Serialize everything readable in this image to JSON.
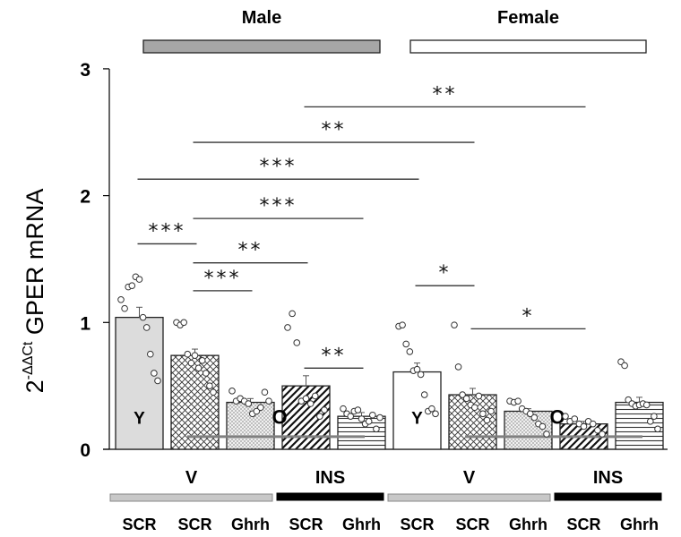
{
  "chart_data": {
    "type": "bar",
    "title": "",
    "ylabel_base": "2",
    "ylabel_sup": "-ΔΔCt",
    "ylabel_main": "GPER mRNA",
    "xlabel": "",
    "ylim": [
      0,
      3
    ],
    "yticks": [
      {
        "value": 0,
        "label": "0"
      },
      {
        "value": 1,
        "label": "1"
      },
      {
        "value": 2,
        "label": "2"
      },
      {
        "value": 3,
        "label": "3"
      }
    ],
    "grid": false,
    "sex_groups": [
      {
        "label": "Male",
        "bar_color": "#a6a6a6",
        "first_bar": 0,
        "last_bar": 4
      },
      {
        "label": "Female",
        "bar_color": "#ffffff",
        "first_bar": 5,
        "last_bar": 9
      }
    ],
    "treatment_groups": [
      {
        "label": "V",
        "bar_color": "#c8c8c8",
        "first_bar": 0,
        "last_bar": 2
      },
      {
        "label": "INS",
        "bar_color": "#000000",
        "first_bar": 3,
        "last_bar": 4
      },
      {
        "label": "V",
        "bar_color": "#c8c8c8",
        "first_bar": 5,
        "last_bar": 7
      },
      {
        "label": "INS",
        "bar_color": "#000000",
        "first_bar": 8,
        "last_bar": 9
      }
    ],
    "categories": [
      "SCR",
      "SCR",
      "Ghrh",
      "SCR",
      "Ghrh",
      "SCR",
      "SCR",
      "Ghrh",
      "SCR",
      "Ghrh"
    ],
    "bars": [
      {
        "sex": "Male",
        "treatment": "V",
        "shRNA": "SCR",
        "age_label": "Y",
        "pattern": "solid-lightgray",
        "value": 1.04,
        "error": 0.08,
        "points": [
          1.18,
          1.11,
          1.28,
          1.29,
          1.36,
          1.34,
          1.04,
          0.96,
          0.75,
          0.6,
          0.54
        ]
      },
      {
        "sex": "Male",
        "treatment": "V",
        "shRNA": "SCR",
        "age_label": "",
        "pattern": "crosshatch",
        "value": 0.74,
        "error": 0.05,
        "points": [
          1.0,
          0.98,
          1.0,
          0.75,
          0.68,
          0.74,
          0.64,
          0.7,
          0.6,
          0.5,
          0.45
        ]
      },
      {
        "sex": "Male",
        "treatment": "V",
        "shRNA": "Ghrh",
        "age_label": "",
        "pattern": "dots",
        "value": 0.37,
        "error": 0.03,
        "points": [
          0.46,
          0.38,
          0.4,
          0.38,
          0.36,
          0.28,
          0.3,
          0.33,
          0.45,
          0.38
        ]
      },
      {
        "sex": "Male",
        "treatment": "INS",
        "shRNA": "SCR",
        "age_label": "O",
        "pattern": "diagonal",
        "value": 0.5,
        "error": 0.08,
        "points": [
          0.96,
          1.07,
          0.84,
          0.38,
          0.4,
          0.36,
          0.42,
          0.26,
          0.31
        ]
      },
      {
        "sex": "Male",
        "treatment": "INS",
        "shRNA": "Ghrh",
        "age_label": "",
        "pattern": "horizontal",
        "value": 0.26,
        "error": 0.03,
        "points": [
          0.32,
          0.28,
          0.26,
          0.3,
          0.31,
          0.24,
          0.2,
          0.22,
          0.27,
          0.16,
          0.25
        ]
      },
      {
        "sex": "Female",
        "treatment": "V",
        "shRNA": "SCR",
        "age_label": "Y",
        "pattern": "solid-white",
        "value": 0.61,
        "error": 0.07,
        "points": [
          0.97,
          0.98,
          0.83,
          0.77,
          0.62,
          0.63,
          0.59,
          0.43,
          0.3,
          0.32,
          0.28
        ]
      },
      {
        "sex": "Female",
        "treatment": "V",
        "shRNA": "SCR",
        "age_label": "",
        "pattern": "crosshatch",
        "value": 0.43,
        "error": 0.05,
        "points": [
          0.98,
          0.65,
          0.43,
          0.4,
          0.35,
          0.33,
          0.42,
          0.28,
          0.23,
          0.3
        ]
      },
      {
        "sex": "Female",
        "treatment": "V",
        "shRNA": "Ghrh",
        "age_label": "",
        "pattern": "dots",
        "value": 0.3,
        "error": 0.02,
        "points": [
          0.38,
          0.37,
          0.38,
          0.32,
          0.3,
          0.28,
          0.25,
          0.2,
          0.18,
          0.12
        ]
      },
      {
        "sex": "Female",
        "treatment": "INS",
        "shRNA": "SCR",
        "age_label": "O",
        "pattern": "diagonal",
        "value": 0.2,
        "error": 0.02,
        "points": [
          0.26,
          0.22,
          0.24,
          0.2,
          0.18,
          0.22,
          0.2,
          0.15,
          0.12
        ]
      },
      {
        "sex": "Female",
        "treatment": "INS",
        "shRNA": "Ghrh",
        "age_label": "",
        "pattern": "horizontal",
        "value": 0.37,
        "error": 0.04,
        "points": [
          0.69,
          0.66,
          0.39,
          0.36,
          0.34,
          0.35,
          0.36,
          0.35,
          0.22,
          0.26,
          0.16
        ]
      }
    ],
    "significance": [
      {
        "from_bar": 3,
        "to_bar": 8,
        "y": 2.7,
        "label": "**"
      },
      {
        "from_bar": 1,
        "to_bar": 6,
        "y": 2.42,
        "label": "**"
      },
      {
        "from_bar": 0,
        "to_bar": 5,
        "y": 2.13,
        "label": "***"
      },
      {
        "from_bar": 1,
        "to_bar": 4,
        "y": 1.82,
        "label": "***"
      },
      {
        "from_bar": 0,
        "to_bar": 1,
        "y": 1.62,
        "label": "***"
      },
      {
        "from_bar": 1,
        "to_bar": 3,
        "y": 1.47,
        "label": "**"
      },
      {
        "from_bar": 1,
        "to_bar": 2,
        "y": 1.25,
        "label": "***"
      },
      {
        "from_bar": 3,
        "to_bar": 4,
        "y": 0.64,
        "label": "**"
      },
      {
        "from_bar": 5,
        "to_bar": 6,
        "y": 1.29,
        "label": "*"
      },
      {
        "from_bar": 6,
        "to_bar": 8,
        "y": 0.95,
        "label": "*"
      }
    ],
    "reference_lines": [
      {
        "from_bar": 1,
        "to_bar": 4,
        "y": 0.1,
        "color": "#808080"
      },
      {
        "from_bar": 6,
        "to_bar": 9,
        "y": 0.1,
        "color": "#808080"
      }
    ]
  }
}
